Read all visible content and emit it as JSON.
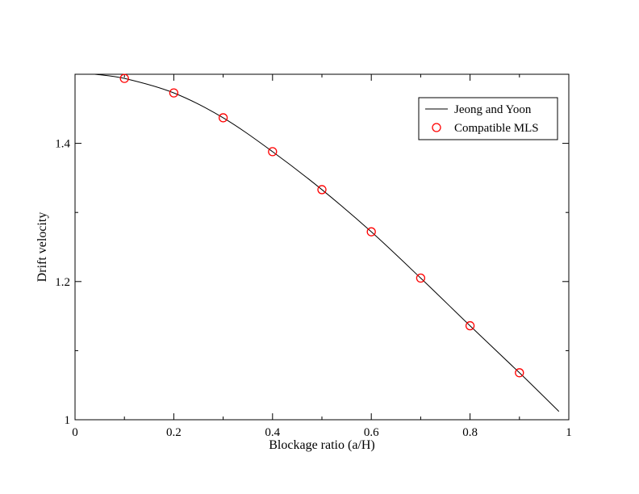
{
  "chart_data": {
    "type": "line",
    "title": "",
    "xlabel": "Blockage ratio (a/H)",
    "ylabel": "Drift velocity",
    "xlim": [
      0,
      1
    ],
    "ylim": [
      1,
      1.5
    ],
    "xticks": [
      {
        "value": 0,
        "label": "0"
      },
      {
        "value": 0.2,
        "label": "0.2"
      },
      {
        "value": 0.4,
        "label": "0.4"
      },
      {
        "value": 0.6,
        "label": "0.6"
      },
      {
        "value": 0.8,
        "label": "0.8"
      },
      {
        "value": 1,
        "label": "1"
      }
    ],
    "yticks": [
      {
        "value": 1,
        "label": "1"
      },
      {
        "value": 1.2,
        "label": "1.2"
      },
      {
        "value": 1.4,
        "label": "1.4"
      }
    ],
    "x_minor_ticks": [
      0.1,
      0.3,
      0.5,
      0.7,
      0.9
    ],
    "y_minor_ticks": [
      1.1,
      1.3,
      1.5
    ],
    "grid": false,
    "legend_position": "top-right",
    "series": [
      {
        "name": "Jeong and Yoon",
        "style": "line",
        "color": "#000000",
        "x": [
          0.04,
          0.1,
          0.2,
          0.3,
          0.4,
          0.5,
          0.6,
          0.7,
          0.8,
          0.9,
          0.98
        ],
        "y": [
          1.5,
          1.494,
          1.473,
          1.437,
          1.388,
          1.333,
          1.272,
          1.205,
          1.136,
          1.068,
          1.012
        ]
      },
      {
        "name": "Compatible MLS",
        "style": "marker",
        "marker": "circle",
        "color": "#ff0000",
        "x": [
          0.1,
          0.2,
          0.3,
          0.4,
          0.5,
          0.6,
          0.7,
          0.8,
          0.9
        ],
        "y": [
          1.494,
          1.473,
          1.437,
          1.388,
          1.333,
          1.272,
          1.205,
          1.136,
          1.068
        ]
      }
    ]
  }
}
